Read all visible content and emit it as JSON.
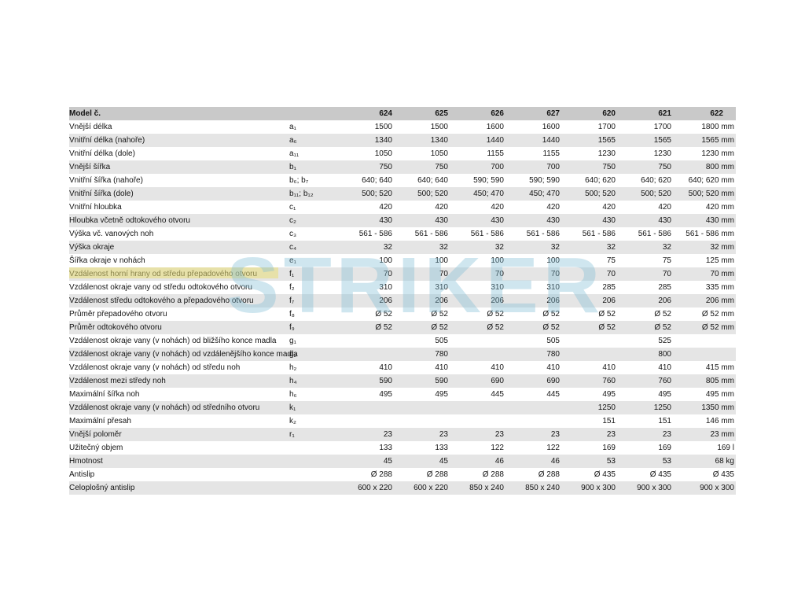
{
  "watermark": "STRIKER",
  "table": {
    "header": {
      "label": "Model č.",
      "symbol": "",
      "cols": [
        "624",
        "625",
        "626",
        "627",
        "620",
        "621",
        "622"
      ]
    },
    "rows": [
      {
        "label": "Vnější délka",
        "sym": "a₁",
        "values": [
          "1500",
          "1500",
          "1600",
          "1600",
          "1700",
          "1700",
          "1800 mm"
        ]
      },
      {
        "label": "Vnitřní délka (nahoře)",
        "sym": "a₆",
        "values": [
          "1340",
          "1340",
          "1440",
          "1440",
          "1565",
          "1565",
          "1565 mm"
        ]
      },
      {
        "label": "Vnitřní délka (dole)",
        "sym": "a₁₁",
        "values": [
          "1050",
          "1050",
          "1155",
          "1155",
          "1230",
          "1230",
          "1230 mm"
        ]
      },
      {
        "label": "Vnější šířka",
        "sym": "b₁",
        "values": [
          "750",
          "750",
          "700",
          "700",
          "750",
          "750",
          "800 mm"
        ]
      },
      {
        "label": "Vnitřní šířka (nahoře)",
        "sym": "b₆; b₇",
        "values": [
          "640; 640",
          "640; 640",
          "590; 590",
          "590; 590",
          "640; 620",
          "640; 620",
          "640; 620 mm"
        ]
      },
      {
        "label": "Vnitřní šířka (dole)",
        "sym": "b₁₁; b₁₂",
        "values": [
          "500; 520",
          "500; 520",
          "450; 470",
          "450; 470",
          "500; 520",
          "500; 520",
          "500; 520 mm"
        ]
      },
      {
        "label": "Vnitřní hloubka",
        "sym": "c₁",
        "values": [
          "420",
          "420",
          "420",
          "420",
          "420",
          "420",
          "420 mm"
        ]
      },
      {
        "label": "Hloubka včetně odtokového otvoru",
        "sym": "c₂",
        "values": [
          "430",
          "430",
          "430",
          "430",
          "430",
          "430",
          "430 mm"
        ]
      },
      {
        "label": "Výška vč. vanových noh",
        "sym": "c₃",
        "values": [
          "561 - 586",
          "561 - 586",
          "561 - 586",
          "561 - 586",
          "561 - 586",
          "561 - 586",
          "561 - 586 mm"
        ]
      },
      {
        "label": "Výška okraje",
        "sym": "c₄",
        "values": [
          "32",
          "32",
          "32",
          "32",
          "32",
          "32",
          "32 mm"
        ]
      },
      {
        "label": "Šířka okraje v nohách",
        "sym": "e₁",
        "values": [
          "100",
          "100",
          "100",
          "100",
          "75",
          "75",
          "125 mm"
        ]
      },
      {
        "label": "Vzdálenost horní hrany od středu přepadového otvoru",
        "sym": "f₁",
        "values": [
          "70",
          "70",
          "70",
          "70",
          "70",
          "70",
          "70 mm"
        ]
      },
      {
        "label": "Vzdálenost okraje vany od středu odtokového otvoru",
        "sym": "f₂",
        "values": [
          "310",
          "310",
          "310",
          "310",
          "285",
          "285",
          "335 mm"
        ]
      },
      {
        "label": "Vzdálenost středu odtokového a přepadového otvoru",
        "sym": "f₇",
        "values": [
          "206",
          "206",
          "206",
          "206",
          "206",
          "206",
          "206 mm"
        ]
      },
      {
        "label": "Průměr přepadového otvoru",
        "sym": "f₈",
        "values": [
          "Ø 52",
          "Ø 52",
          "Ø 52",
          "Ø 52",
          "Ø 52",
          "Ø 52",
          "Ø 52 mm"
        ]
      },
      {
        "label": "Průměr odtokového otvoru",
        "sym": "f₉",
        "values": [
          "Ø 52",
          "Ø 52",
          "Ø 52",
          "Ø 52",
          "Ø 52",
          "Ø 52",
          "Ø 52 mm"
        ]
      },
      {
        "label": "Vzdálenost okraje vany (v nohách) od bližšího konce madla",
        "sym": "g₁",
        "values": [
          "",
          "505",
          "",
          "505",
          "",
          "525",
          ""
        ]
      },
      {
        "label": "Vzdálenost okraje vany (v nohách) od vzdálenějšího konce madla",
        "sym": "g₂",
        "values": [
          "",
          "780",
          "",
          "780",
          "",
          "800",
          ""
        ]
      },
      {
        "label": "Vzdálenost okraje vany (v nohách) od středu noh",
        "sym": "h₂",
        "values": [
          "410",
          "410",
          "410",
          "410",
          "410",
          "410",
          "415 mm"
        ]
      },
      {
        "label": "Vzdálenost mezi středy noh",
        "sym": "h₄",
        "values": [
          "590",
          "590",
          "690",
          "690",
          "760",
          "760",
          "805 mm"
        ]
      },
      {
        "label": "Maximální šířka noh",
        "sym": "h₆",
        "values": [
          "495",
          "495",
          "445",
          "445",
          "495",
          "495",
          "495 mm"
        ]
      },
      {
        "label": "Vzdálenost okraje vany (v nohách) od středního otvoru",
        "sym": "k₁",
        "values": [
          "",
          "",
          "",
          "",
          "1250",
          "1250",
          "1350 mm"
        ]
      },
      {
        "label": "Maximální přesah",
        "sym": "k₂",
        "values": [
          "",
          "",
          "",
          "",
          "151",
          "151",
          "146 mm"
        ]
      },
      {
        "label": "Vnější poloměr",
        "sym": "r₁",
        "values": [
          "23",
          "23",
          "23",
          "23",
          "23",
          "23",
          "23 mm"
        ]
      },
      {
        "label": "Užitečný objem",
        "sym": "",
        "values": [
          "133",
          "133",
          "122",
          "122",
          "169",
          "169",
          "169 l"
        ]
      },
      {
        "label": "Hmotnost",
        "sym": "",
        "values": [
          "45",
          "45",
          "46",
          "46",
          "53",
          "53",
          "68 kg"
        ]
      },
      {
        "label": "Antislip",
        "sym": "",
        "values": [
          "Ø 288",
          "Ø 288",
          "Ø 288",
          "Ø 288",
          "Ø 435",
          "Ø 435",
          "Ø 435"
        ]
      },
      {
        "label": "Celoplošný antislip",
        "sym": "",
        "values": [
          "600 x 220",
          "600 x 220",
          "850 x 240",
          "850 x 240",
          "900 x 300",
          "900 x 300",
          "900 x 300"
        ]
      }
    ]
  }
}
